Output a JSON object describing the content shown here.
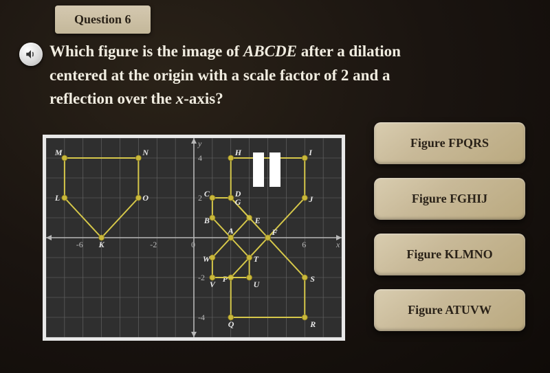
{
  "question": {
    "number_label": "Question 6",
    "line1": "Which figure is the image of ",
    "em1": "ABCDE",
    "line1b": " after a dilation",
    "line2": "centered at the origin with a scale factor of 2 and a",
    "line3": "reflection over the ",
    "em2": "x",
    "line3b": "-axis?"
  },
  "answers": [
    {
      "label": "Figure FPQRS"
    },
    {
      "label": "Figure FGHIJ"
    },
    {
      "label": "Figure KLMNO"
    },
    {
      "label": "Figure ATUVW"
    }
  ],
  "graph": {
    "background_color": "#2f2f2f",
    "grid_color": "#6a6a6a",
    "axis_color": "#b8b8b8",
    "figure_color": "#d6c84a",
    "point_fill": "#c9b83a",
    "label_color": "#e8e8e8",
    "xlim": [
      -8,
      8
    ],
    "ylim": [
      -5,
      5
    ],
    "xticks": [
      -6,
      -2,
      0,
      6
    ],
    "yticks": [
      -4,
      -2,
      2,
      4
    ],
    "xtick_labels": {
      "-6": "-6",
      "-2": "-2",
      "0": "0",
      "6": "6"
    },
    "ytick_labels": {
      "-4": "-4",
      "-2": "-2",
      "2": "2",
      "4": "4"
    },
    "axis_labels": {
      "x": "x",
      "y": "y"
    },
    "figures": {
      "ABCDE": {
        "pts": [
          [
            "A",
            2,
            0
          ],
          [
            "B",
            1,
            1
          ],
          [
            "C",
            1,
            2
          ],
          [
            "D",
            2,
            2
          ],
          [
            "E",
            3,
            1
          ]
        ]
      },
      "FGHIJ": {
        "pts": [
          [
            "F",
            4,
            0
          ],
          [
            "G",
            2,
            2
          ],
          [
            "H",
            2,
            4
          ],
          [
            "I",
            6,
            4
          ],
          [
            "J",
            6,
            2
          ]
        ]
      },
      "KLMNO": {
        "pts": [
          [
            "K",
            -5,
            0
          ],
          [
            "L",
            -7,
            2
          ],
          [
            "M",
            -7,
            4
          ],
          [
            "N",
            -3,
            4
          ],
          [
            "O",
            -3,
            2
          ]
        ]
      },
      "FPQRS": {
        "pts": [
          [
            "F",
            4,
            0
          ],
          [
            "P",
            2,
            -2
          ],
          [
            "Q",
            2,
            -4
          ],
          [
            "R",
            6,
            -4
          ],
          [
            "S",
            6,
            -2
          ]
        ]
      },
      "ATUVW": {
        "pts": [
          [
            "A",
            2,
            0
          ],
          [
            "T",
            3,
            -1
          ],
          [
            "U",
            3,
            -2
          ],
          [
            "V",
            1,
            -2
          ],
          [
            "W",
            1,
            -1
          ]
        ]
      }
    },
    "font_size_labels": 12,
    "line_width": 2,
    "point_radius": 4
  },
  "styling": {
    "answer_bg": "#c8b998",
    "answer_text": "#2a2218",
    "tab_bg": "#c4b89a",
    "body_bg": "#1a1410",
    "question_color": "#f0ece0"
  }
}
